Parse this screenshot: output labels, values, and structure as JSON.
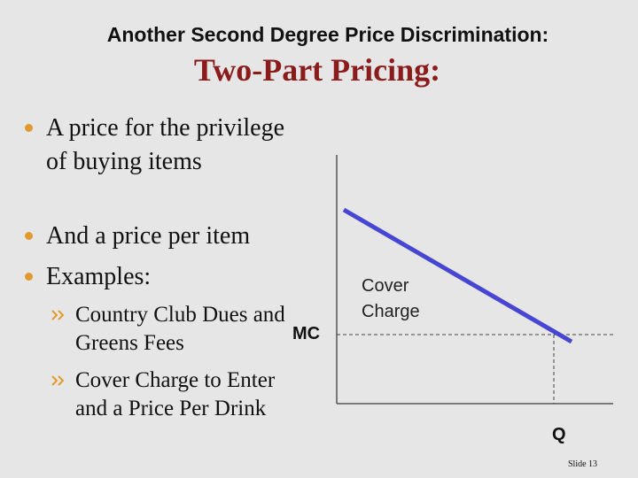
{
  "header": {
    "subtitle": "Another Second Degree Price Discrimination:",
    "title": "Two-Part Pricing:"
  },
  "bullets": [
    "A price for the privilege of buying items",
    "And a price per item",
    "Examples:"
  ],
  "sub_bullets": [
    "Country Club Dues and Greens Fees",
    "Cover Charge to Enter and a Price Per Drink"
  ],
  "diagram": {
    "cover_label": "Cover Charge",
    "mc_label": "MC",
    "q_label": "Q"
  },
  "footer": {
    "slide": "Slide 13"
  }
}
